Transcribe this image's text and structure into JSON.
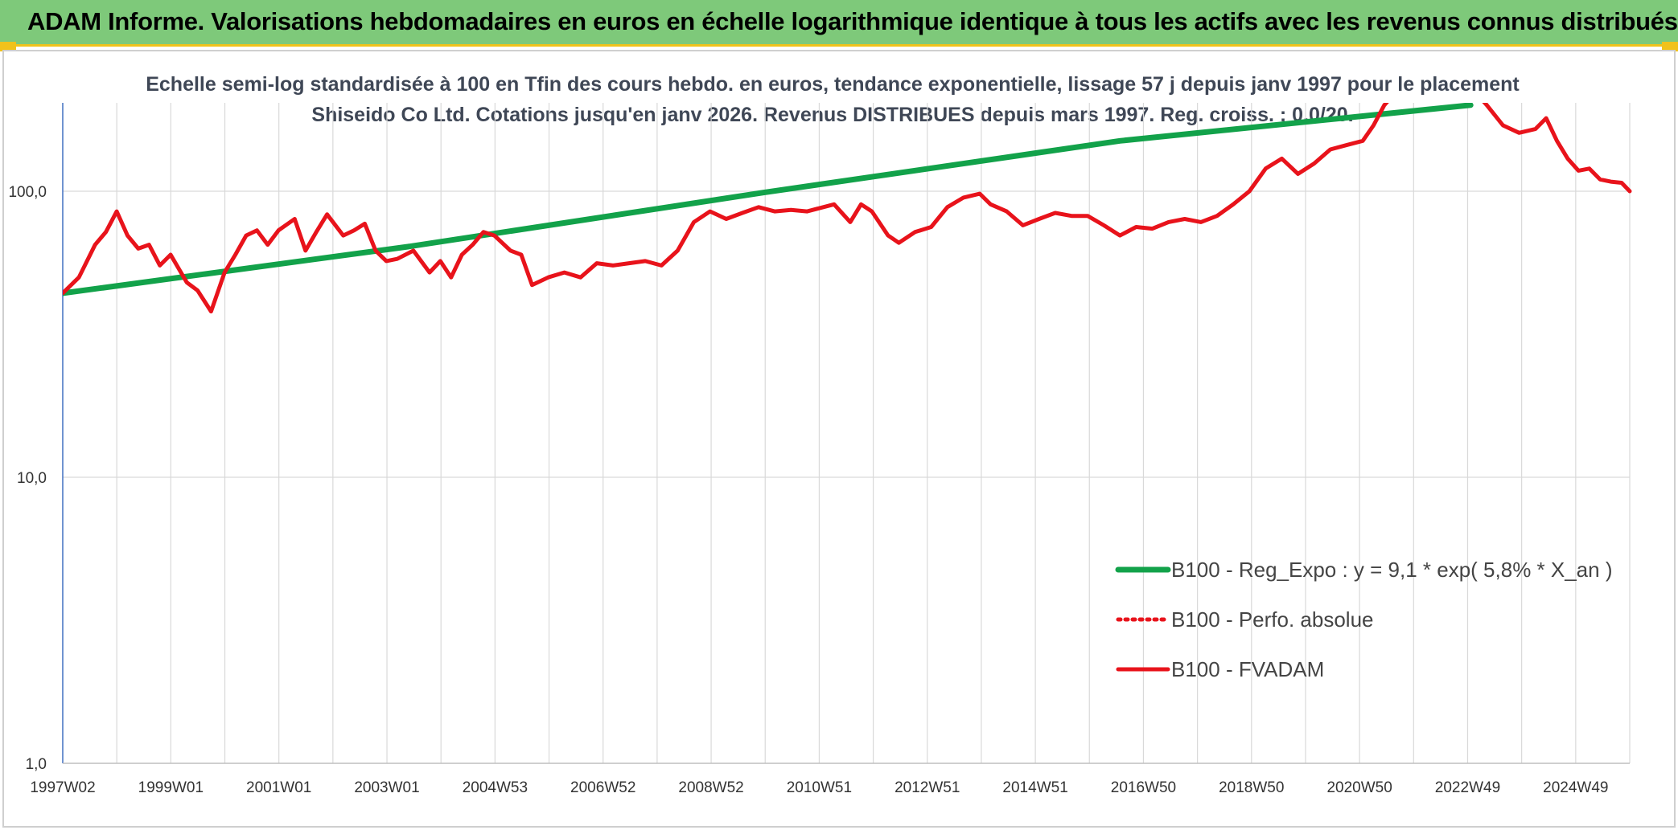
{
  "header": {
    "title": "ADAM Informe. Valorisations hebdomadaires en euros en échelle logarithmique identique à tous les actifs avec les revenus connus distribués"
  },
  "chart_data": {
    "type": "line",
    "title": "Echelle semi-log standardisée à 100 en Tfin des cours hebdo. en euros, tendance exponentielle, lissage 57 j depuis janv 1997 pour le placement Shiseido Co Ltd. Cotations jusqu'en janv 2026. Revenus DISTRIBUES depuis mars 1997. Reg. croiss. : 0,0/20.",
    "y_scale": "log",
    "ylim": [
      1,
      200
    ],
    "xlim": [
      1997.0,
      2026.05
    ],
    "y_ticks": [
      "1,0",
      "10,0",
      "100,0"
    ],
    "x_ticks": [
      "1997W02",
      "1999W01",
      "2001W01",
      "2003W01",
      "2004W53",
      "2006W52",
      "2008W52",
      "2010W51",
      "2012W51",
      "2014W51",
      "2016W50",
      "2018W50",
      "2020W50",
      "2022W49",
      "2024W49"
    ],
    "grid": "vertical and horizontal",
    "legend_position": "bottom-right",
    "series": [
      {
        "name": "B100 - Reg_Expo : y = 9,1 * exp( 5,8% *  X_an )",
        "color": "#12a24a",
        "style": "solid",
        "points": [
          [
            1997.0,
            44
          ],
          [
            2003.4,
            64
          ],
          [
            2010.0,
            99
          ],
          [
            2016.6,
            150
          ],
          [
            2023.1,
            200
          ]
        ]
      },
      {
        "name": "B100 - Perfo. absolue",
        "color": "#e8131b",
        "style": "dotted",
        "points": []
      },
      {
        "name": "B100 - FVADAM",
        "color": "#e8131b",
        "style": "solid",
        "points": [
          [
            1997.0,
            44
          ],
          [
            1997.3,
            50
          ],
          [
            1997.6,
            65
          ],
          [
            1997.8,
            72
          ],
          [
            1998.0,
            85
          ],
          [
            1998.2,
            70
          ],
          [
            1998.4,
            63
          ],
          [
            1998.6,
            65
          ],
          [
            1998.8,
            55
          ],
          [
            1999.0,
            60
          ],
          [
            1999.3,
            48
          ],
          [
            1999.5,
            45
          ],
          [
            1999.75,
            38
          ],
          [
            2000.0,
            52
          ],
          [
            2000.2,
            60
          ],
          [
            2000.4,
            70
          ],
          [
            2000.6,
            73
          ],
          [
            2000.8,
            65
          ],
          [
            2001.0,
            73
          ],
          [
            2001.3,
            80
          ],
          [
            2001.5,
            62
          ],
          [
            2001.7,
            72
          ],
          [
            2001.9,
            83
          ],
          [
            2002.2,
            70
          ],
          [
            2002.4,
            73
          ],
          [
            2002.6,
            77
          ],
          [
            2002.8,
            62
          ],
          [
            2003.0,
            57
          ],
          [
            2003.2,
            58
          ],
          [
            2003.5,
            62
          ],
          [
            2003.8,
            52
          ],
          [
            2004.0,
            57
          ],
          [
            2004.2,
            50
          ],
          [
            2004.4,
            60
          ],
          [
            2004.6,
            65
          ],
          [
            2004.8,
            72
          ],
          [
            2005.0,
            70
          ],
          [
            2005.3,
            62
          ],
          [
            2005.5,
            60
          ],
          [
            2005.7,
            47
          ],
          [
            2006.0,
            50
          ],
          [
            2006.3,
            52
          ],
          [
            2006.6,
            50
          ],
          [
            2006.9,
            56
          ],
          [
            2007.2,
            55
          ],
          [
            2007.5,
            56
          ],
          [
            2007.8,
            57
          ],
          [
            2008.1,
            55
          ],
          [
            2008.4,
            62
          ],
          [
            2008.7,
            78
          ],
          [
            2009.0,
            85
          ],
          [
            2009.3,
            80
          ],
          [
            2009.6,
            84
          ],
          [
            2009.9,
            88
          ],
          [
            2010.2,
            85
          ],
          [
            2010.5,
            86
          ],
          [
            2010.8,
            85
          ],
          [
            2011.1,
            88
          ],
          [
            2011.3,
            90
          ],
          [
            2011.6,
            78
          ],
          [
            2011.8,
            90
          ],
          [
            2012.0,
            85
          ],
          [
            2012.3,
            70
          ],
          [
            2012.5,
            66
          ],
          [
            2012.8,
            72
          ],
          [
            2013.1,
            75
          ],
          [
            2013.4,
            88
          ],
          [
            2013.7,
            95
          ],
          [
            2014.0,
            98
          ],
          [
            2014.2,
            90
          ],
          [
            2014.5,
            85
          ],
          [
            2014.8,
            76
          ],
          [
            2015.1,
            80
          ],
          [
            2015.4,
            84
          ],
          [
            2015.7,
            82
          ],
          [
            2016.0,
            82
          ],
          [
            2016.3,
            76
          ],
          [
            2016.6,
            70
          ],
          [
            2016.9,
            75
          ],
          [
            2017.2,
            74
          ],
          [
            2017.5,
            78
          ],
          [
            2017.8,
            80
          ],
          [
            2018.1,
            78
          ],
          [
            2018.4,
            82
          ],
          [
            2018.7,
            90
          ],
          [
            2019.0,
            100
          ],
          [
            2019.3,
            120
          ],
          [
            2019.6,
            130
          ],
          [
            2019.9,
            115
          ],
          [
            2020.2,
            125
          ],
          [
            2020.5,
            140
          ],
          [
            2020.8,
            145
          ],
          [
            2021.1,
            150
          ],
          [
            2021.3,
            170
          ],
          [
            2021.5,
            200
          ],
          [
            2021.6,
            210
          ],
          [
            2023.3,
            210
          ],
          [
            2023.4,
            200
          ],
          [
            2023.7,
            170
          ],
          [
            2024.0,
            160
          ],
          [
            2024.3,
            165
          ],
          [
            2024.5,
            180
          ],
          [
            2024.7,
            150
          ],
          [
            2024.9,
            130
          ],
          [
            2025.1,
            118
          ],
          [
            2025.3,
            120
          ],
          [
            2025.5,
            110
          ],
          [
            2025.7,
            108
          ],
          [
            2025.9,
            107
          ],
          [
            2026.05,
            100
          ]
        ]
      }
    ]
  }
}
